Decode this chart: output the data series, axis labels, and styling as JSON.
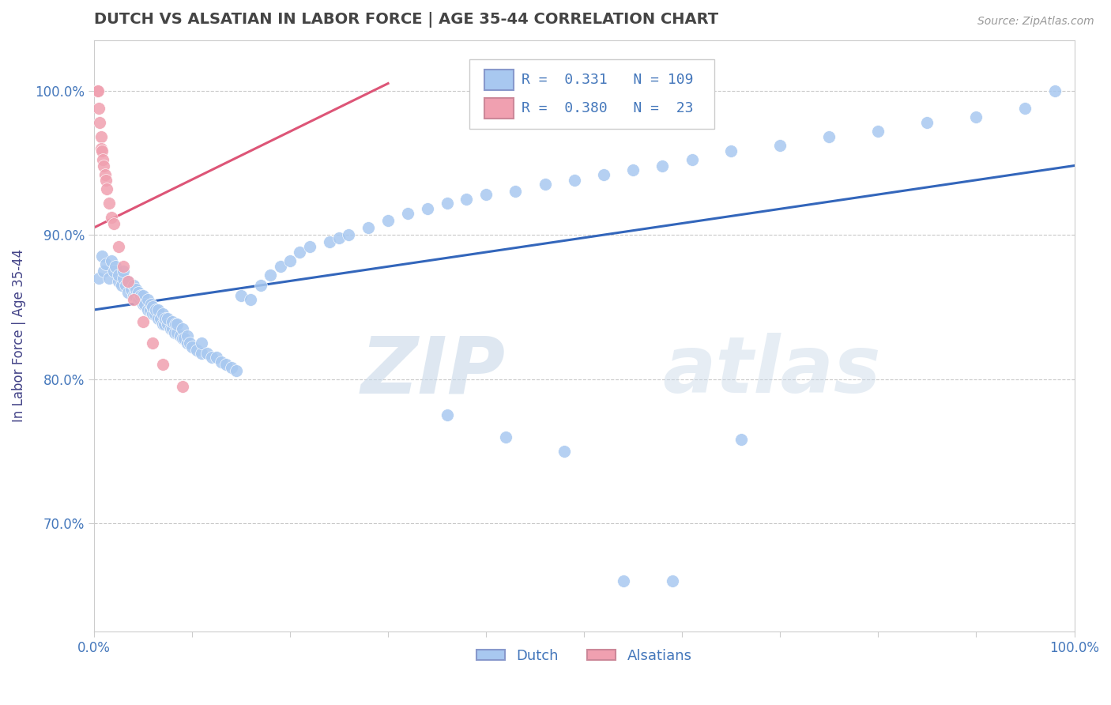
{
  "title": "DUTCH VS ALSATIAN IN LABOR FORCE | AGE 35-44 CORRELATION CHART",
  "source_text": "Source: ZipAtlas.com",
  "ylabel": "In Labor Force | Age 35-44",
  "xlim": [
    0.0,
    1.0
  ],
  "ylim": [
    0.625,
    1.035
  ],
  "ytick_values": [
    0.7,
    0.8,
    0.9,
    1.0
  ],
  "watermark_zip": "ZIP",
  "watermark_atlas": "atlas",
  "legend_dutch_R": "0.331",
  "legend_dutch_N": "109",
  "legend_alsatian_R": "0.380",
  "legend_alsatian_N": "23",
  "dutch_color": "#a8c8f0",
  "alsatian_color": "#f0a0b0",
  "dutch_line_color": "#3366bb",
  "alsatian_line_color": "#dd5577",
  "background_color": "#ffffff",
  "grid_color": "#bbbbbb",
  "title_color": "#444444",
  "axis_label_color": "#4477bb",
  "dutch_points_x": [
    0.005,
    0.008,
    0.01,
    0.012,
    0.015,
    0.018,
    0.02,
    0.022,
    0.025,
    0.025,
    0.028,
    0.03,
    0.03,
    0.032,
    0.035,
    0.035,
    0.038,
    0.04,
    0.04,
    0.042,
    0.043,
    0.045,
    0.045,
    0.047,
    0.048,
    0.05,
    0.05,
    0.052,
    0.055,
    0.055,
    0.057,
    0.058,
    0.06,
    0.06,
    0.062,
    0.063,
    0.065,
    0.065,
    0.068,
    0.07,
    0.07,
    0.072,
    0.073,
    0.075,
    0.075,
    0.078,
    0.08,
    0.08,
    0.082,
    0.083,
    0.085,
    0.085,
    0.088,
    0.09,
    0.09,
    0.092,
    0.095,
    0.095,
    0.098,
    0.1,
    0.105,
    0.11,
    0.11,
    0.115,
    0.12,
    0.125,
    0.13,
    0.135,
    0.14,
    0.145,
    0.15,
    0.16,
    0.17,
    0.18,
    0.19,
    0.2,
    0.21,
    0.22,
    0.24,
    0.25,
    0.26,
    0.28,
    0.3,
    0.32,
    0.34,
    0.36,
    0.38,
    0.4,
    0.43,
    0.46,
    0.49,
    0.52,
    0.55,
    0.58,
    0.61,
    0.65,
    0.7,
    0.75,
    0.8,
    0.85,
    0.9,
    0.95,
    0.98,
    0.36,
    0.42,
    0.48,
    0.54,
    0.59,
    0.66
  ],
  "dutch_points_y": [
    0.87,
    0.885,
    0.875,
    0.88,
    0.87,
    0.882,
    0.875,
    0.878,
    0.868,
    0.872,
    0.865,
    0.87,
    0.875,
    0.865,
    0.86,
    0.868,
    0.862,
    0.858,
    0.865,
    0.858,
    0.862,
    0.855,
    0.86,
    0.855,
    0.858,
    0.852,
    0.858,
    0.852,
    0.848,
    0.855,
    0.848,
    0.852,
    0.845,
    0.85,
    0.845,
    0.848,
    0.842,
    0.848,
    0.842,
    0.838,
    0.845,
    0.838,
    0.842,
    0.838,
    0.842,
    0.835,
    0.835,
    0.84,
    0.832,
    0.838,
    0.832,
    0.838,
    0.83,
    0.828,
    0.835,
    0.828,
    0.825,
    0.83,
    0.825,
    0.822,
    0.82,
    0.818,
    0.825,
    0.818,
    0.815,
    0.815,
    0.812,
    0.81,
    0.808,
    0.806,
    0.858,
    0.855,
    0.865,
    0.872,
    0.878,
    0.882,
    0.888,
    0.892,
    0.895,
    0.898,
    0.9,
    0.905,
    0.91,
    0.915,
    0.918,
    0.922,
    0.925,
    0.928,
    0.93,
    0.935,
    0.938,
    0.942,
    0.945,
    0.948,
    0.952,
    0.958,
    0.962,
    0.968,
    0.972,
    0.978,
    0.982,
    0.988,
    1.0,
    0.775,
    0.76,
    0.75,
    0.66,
    0.66,
    0.758
  ],
  "alsatian_points_x": [
    0.003,
    0.004,
    0.005,
    0.006,
    0.007,
    0.007,
    0.008,
    0.009,
    0.01,
    0.011,
    0.012,
    0.013,
    0.015,
    0.018,
    0.02,
    0.025,
    0.03,
    0.035,
    0.04,
    0.05,
    0.06,
    0.07,
    0.09
  ],
  "alsatian_points_y": [
    1.0,
    1.0,
    0.988,
    0.978,
    0.968,
    0.96,
    0.958,
    0.952,
    0.948,
    0.942,
    0.938,
    0.932,
    0.922,
    0.912,
    0.908,
    0.892,
    0.878,
    0.868,
    0.855,
    0.84,
    0.825,
    0.81,
    0.795
  ],
  "dutch_trend_x0": 0.0,
  "dutch_trend_y0": 0.848,
  "dutch_trend_x1": 1.0,
  "dutch_trend_y1": 0.948,
  "alsatian_trend_x0": 0.0,
  "alsatian_trend_y0": 0.905,
  "alsatian_trend_x1": 0.3,
  "alsatian_trend_y1": 1.005
}
